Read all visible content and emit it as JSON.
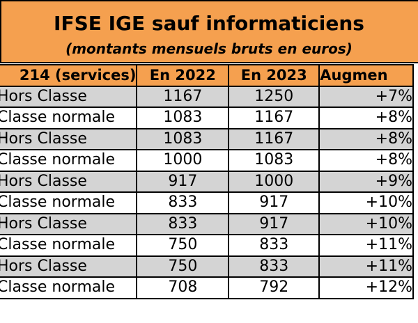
{
  "title": "IFSE IGE sauf informaticiens",
  "subtitle": "(montants mensuels bruts en euros)",
  "headers": {
    "label": "214 (services)",
    "y2022": "En 2022",
    "y2023": "En 2023",
    "increase": "Augmen"
  },
  "rows": [
    {
      "grade": "Hors Classe",
      "y2022": "1167",
      "y2023": "1250",
      "increase": "+7%"
    },
    {
      "grade": "Classe normale",
      "y2022": "1083",
      "y2023": "1167",
      "increase": "+8%"
    },
    {
      "grade": "Hors Classe",
      "y2022": "1083",
      "y2023": "1167",
      "increase": "+8%"
    },
    {
      "grade": "Classe normale",
      "y2022": "1000",
      "y2023": "1083",
      "increase": "+8%"
    },
    {
      "grade": "Hors Classe",
      "y2022": "917",
      "y2023": "1000",
      "increase": "+9%"
    },
    {
      "grade": "Classe normale",
      "y2022": "833",
      "y2023": "917",
      "increase": "+10%"
    },
    {
      "grade": "Hors Classe",
      "y2022": "833",
      "y2023": "917",
      "increase": "+10%"
    },
    {
      "grade": "Classe normale",
      "y2022": "750",
      "y2023": "833",
      "increase": "+11%"
    },
    {
      "grade": "Hors Classe",
      "y2022": "750",
      "y2023": "833",
      "increase": "+11%"
    },
    {
      "grade": "Classe normale",
      "y2022": "708",
      "y2023": "792",
      "increase": "+12%"
    }
  ],
  "colors": {
    "header_orange": "#f5a04f",
    "shaded_row": "#d4d4d4",
    "plain_row": "#ffffff"
  }
}
